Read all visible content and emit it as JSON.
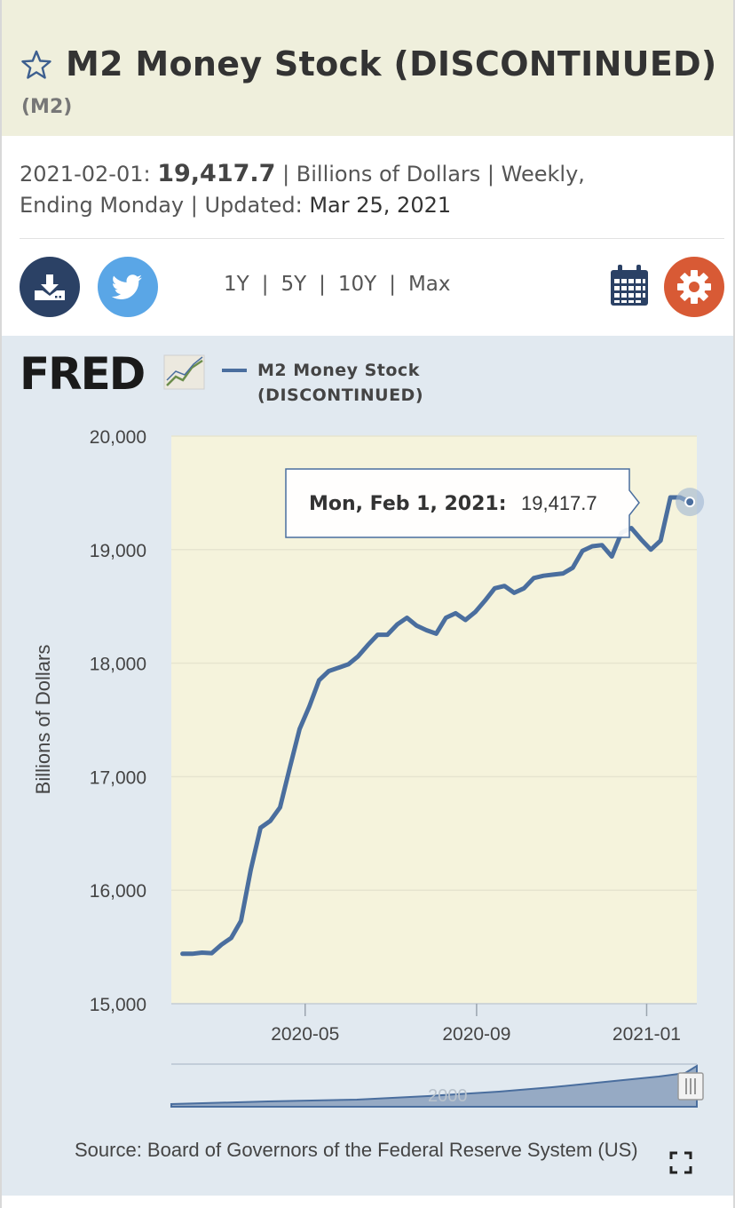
{
  "header": {
    "title": "M2 Money Stock (DISCONTINUED)",
    "series_id": "(M2)"
  },
  "meta": {
    "date": "2021-02-01:",
    "value": "19,417.7",
    "units": "| Billions of Dollars |",
    "frequency": "Weekly,",
    "frequency2": "Ending Monday |",
    "updated_label": "Updated:",
    "updated": "Mar 25, 2021"
  },
  "toolbar": {
    "ranges": [
      "1Y",
      "5Y",
      "10Y",
      "Max"
    ],
    "separator": "|",
    "icons": [
      "download-icon",
      "twitter-icon",
      "calendar-icon",
      "gear-icon"
    ]
  },
  "colors": {
    "line": "#4a6e9e",
    "plot_bg": "#f5f3dc",
    "panel_bg": "#e1e9f0",
    "download": "#2b4165",
    "twitter": "#5aa6e6",
    "settings": "#d85a35"
  },
  "chart": {
    "logo_text": "FRED",
    "legend_line1": "M2 Money Stock",
    "legend_line2": "(DISCONTINUED)",
    "tooltip_date": "Mon, Feb 1, 2021:",
    "tooltip_value": "19,417.7",
    "navigator_label": "2000",
    "source": "Source: Board of Governors of the Federal Reserve System (US)"
  },
  "chart_data": {
    "type": "line",
    "ylabel": "Billions of Dollars",
    "ylim": [
      15000,
      20000
    ],
    "yticks": [
      15000,
      16000,
      17000,
      18000,
      19000,
      20000
    ],
    "ytick_labels": [
      "15,000",
      "16,000",
      "17,000",
      "18,000",
      "19,000",
      "20,000"
    ],
    "xtick_labels": [
      "2020-05",
      "2020-09",
      "2021-01"
    ],
    "grid": true,
    "legend_position": "top",
    "series": [
      {
        "name": "M2 Money Stock (DISCONTINUED)",
        "x": [
          "2020-02-03",
          "2020-02-10",
          "2020-02-17",
          "2020-02-24",
          "2020-03-02",
          "2020-03-09",
          "2020-03-16",
          "2020-03-23",
          "2020-03-30",
          "2020-04-06",
          "2020-04-13",
          "2020-04-20",
          "2020-04-27",
          "2020-05-04",
          "2020-05-11",
          "2020-05-18",
          "2020-05-25",
          "2020-06-01",
          "2020-06-08",
          "2020-06-15",
          "2020-06-22",
          "2020-06-29",
          "2020-07-06",
          "2020-07-13",
          "2020-07-20",
          "2020-07-27",
          "2020-08-03",
          "2020-08-10",
          "2020-08-17",
          "2020-08-24",
          "2020-08-31",
          "2020-09-07",
          "2020-09-14",
          "2020-09-21",
          "2020-09-28",
          "2020-10-05",
          "2020-10-12",
          "2020-10-19",
          "2020-10-26",
          "2020-11-02",
          "2020-11-09",
          "2020-11-16",
          "2020-11-23",
          "2020-11-30",
          "2020-12-07",
          "2020-12-14",
          "2020-12-21",
          "2020-12-28",
          "2021-01-04",
          "2021-01-11",
          "2021-01-18",
          "2021-01-25",
          "2021-02-01"
        ],
        "values": [
          15440,
          15440,
          15450,
          15445,
          15520,
          15580,
          15730,
          16180,
          16550,
          16610,
          16730,
          17080,
          17420,
          17620,
          17850,
          17930,
          17960,
          17990,
          18060,
          18160,
          18250,
          18250,
          18340,
          18400,
          18330,
          18290,
          18260,
          18400,
          18440,
          18380,
          18450,
          18550,
          18660,
          18680,
          18620,
          18660,
          18750,
          18770,
          18780,
          18790,
          18840,
          18990,
          19030,
          19040,
          18940,
          19150,
          19190,
          19090,
          19000,
          19080,
          19460,
          19460,
          19420
        ]
      }
    ]
  }
}
